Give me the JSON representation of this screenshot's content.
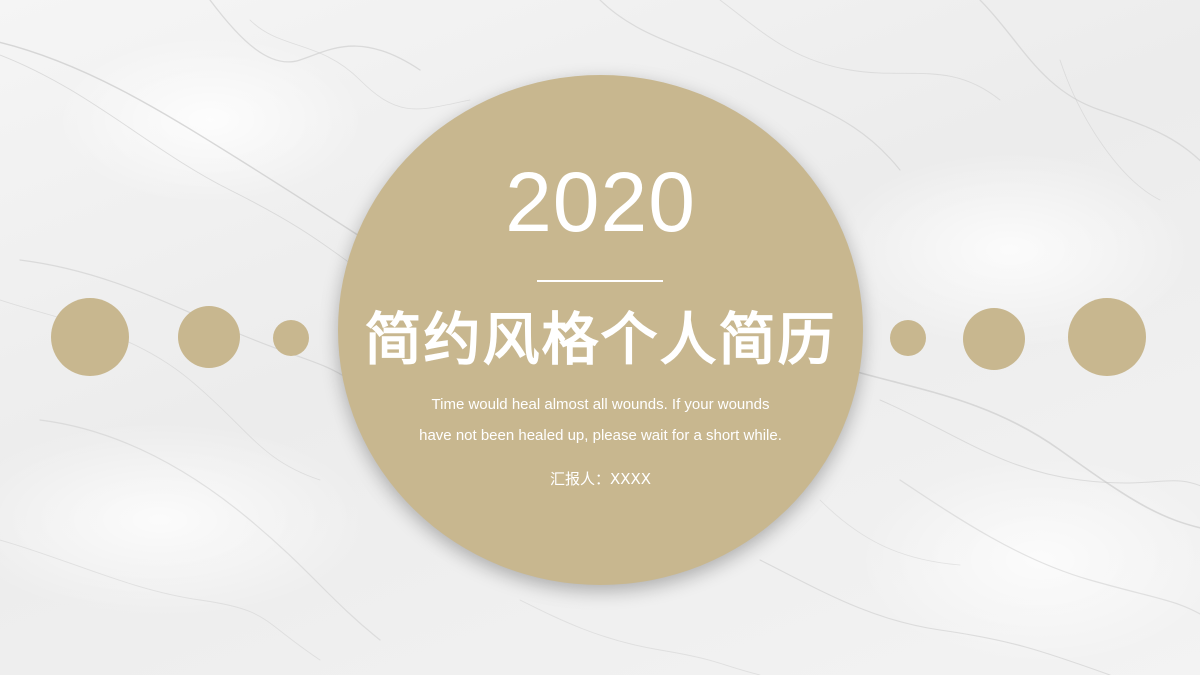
{
  "slide": {
    "year": "2020",
    "title": "简约风格个人简历",
    "subtitle_line1": "Time would heal almost all wounds. If your wounds",
    "subtitle_line2": "have not been healed up, please wait for a short while.",
    "reporter_label": "汇报人：",
    "reporter_name": "XXXX"
  },
  "colors": {
    "accent_gold": "#c8b78f",
    "background": "#f1f1f1",
    "text": "#ffffff"
  }
}
